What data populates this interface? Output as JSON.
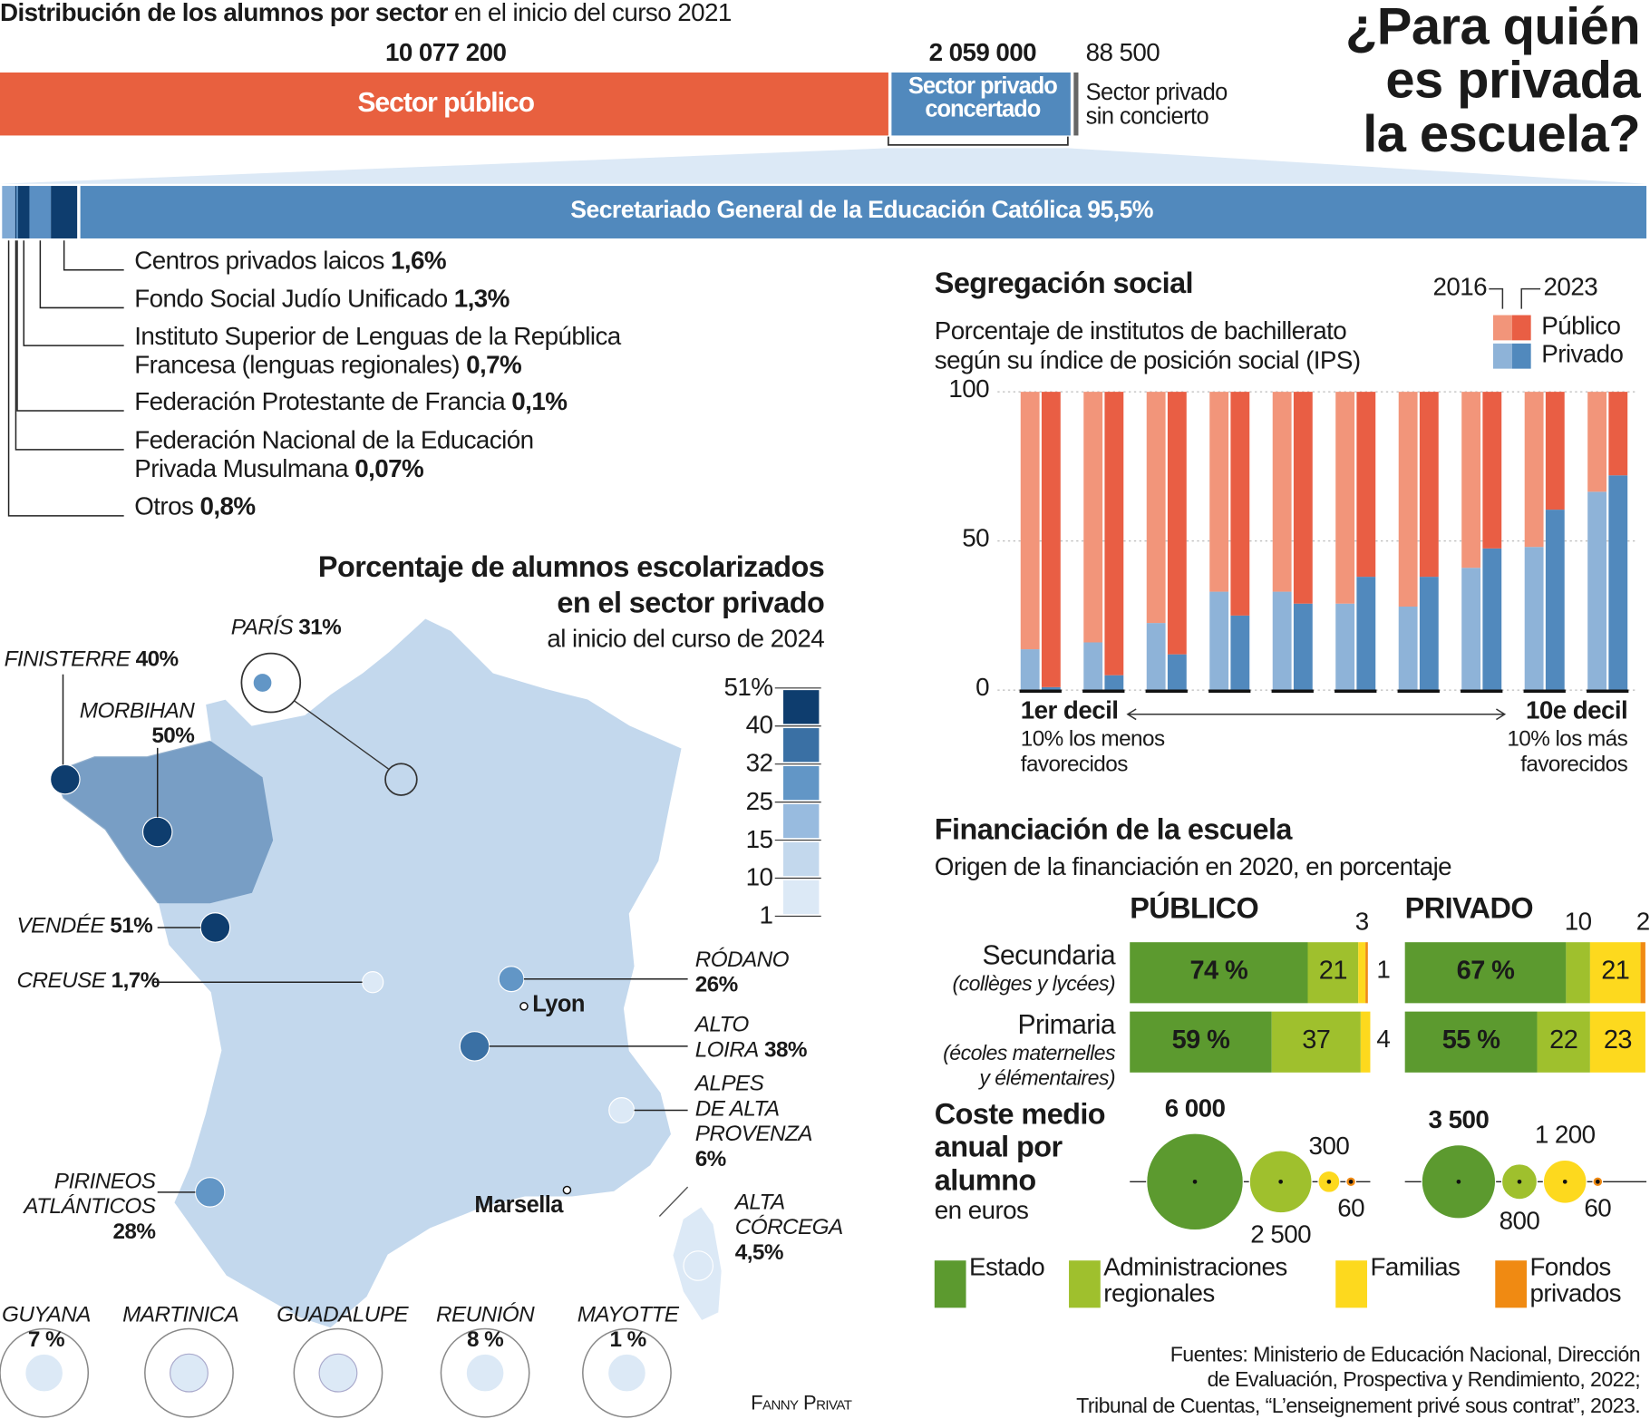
{
  "title": "¿Para quién\nes privada\nla escuela?",
  "credit": "Fanny Privat",
  "sources": "Fuentes: Ministerio de Educación Nacional, Dirección\nde Evaluación, Prospectiva y Rendimiento, 2022;\nTribunal de Cuentas, “L’enseignement privé sous contrat”, 2023.",
  "chart_data": [
    {
      "type": "stacked-bar",
      "title": "Distribución de los alumnos por sector",
      "subtitle": "en el inicio del curso 2021",
      "categories": [
        "Sector público",
        "Sector privado\nconcertado",
        "Sector privado\nsin concierto"
      ],
      "values": [
        10077200,
        2059000,
        88500
      ],
      "value_labels": [
        "10 077 200",
        "2 059 000",
        "88 500"
      ],
      "colors": [
        "#e8603f",
        "#5189bd",
        "#666666"
      ]
    },
    {
      "type": "stacked-bar",
      "categories": [
        "Otros",
        "Federación Nacional de la Educación\nPrivada Musulmana",
        "Federación Protestante de Francia",
        "Instituto Superior de Lenguas de la República\nFrancesa (lenguas regionales)",
        "Fondo Social Judío Unificado",
        "Centros privados laicos",
        "Secretariado General de la Educación Católica"
      ],
      "values": [
        0.8,
        0.07,
        0.1,
        0.7,
        1.3,
        1.6,
        95.5
      ],
      "value_labels": [
        "0,8%",
        "0,07%",
        "0,1%",
        "0,7%",
        "1,3%",
        "1,6%",
        "95,5%"
      ],
      "colors": [
        "#7fa9d4",
        "#0e3d6e",
        "#5189bd",
        "#0e3d6e",
        "#5a8fc3",
        "#0e3d6e",
        "#5189bd"
      ]
    },
    {
      "type": "grouped-bar",
      "title": "Segregación social",
      "subtitle": "Porcentaje de institutos de bachillerato\nsegún su índice de posición social (IPS)",
      "years": [
        "2016",
        "2023"
      ],
      "categories": [
        "1er decil",
        null,
        null,
        null,
        null,
        null,
        null,
        null,
        null,
        "10e decil"
      ],
      "category_notes": [
        "10% los menos\nfavorecidos",
        null,
        null,
        null,
        null,
        null,
        null,
        null,
        null,
        "10% los más\nfavorecidos"
      ],
      "series": [
        {
          "name": "Público",
          "colors": [
            "#f2957a",
            "#e95e44"
          ],
          "values": [
            [
              86.3,
              84,
              77.5,
              67,
              67,
              71,
              72,
              59,
              52,
              33.5
            ],
            [
              99,
              95,
              88,
              75,
              71,
              62,
              62,
              52.5,
              39.5,
              28
            ]
          ]
        },
        {
          "name": "Privado",
          "colors": [
            "#8eb3d8",
            "#5189bd"
          ],
          "values": [
            [
              13.7,
              16,
              22.5,
              33,
              33,
              29,
              28,
              41,
              48,
              66.5
            ],
            [
              1,
              5,
              12,
              25,
              29,
              38,
              38,
              47.5,
              60.5,
              72
            ]
          ]
        }
      ],
      "ylim": [
        0,
        100
      ],
      "yticks": [
        0,
        50,
        100
      ],
      "grid": true
    },
    {
      "type": "stacked-bar",
      "title": "Financiación de la escuela",
      "subtitle": "Origen de la financiación en 2020, en porcentaje",
      "panels": [
        "PÚBLICO",
        "PRIVADO"
      ],
      "categories": [
        "Secundaria",
        "Primaria"
      ],
      "category_notes": [
        "(collèges y lycées)",
        "(écoles maternelles\ny élémentaires)"
      ],
      "series": [
        {
          "name": "Estado",
          "color": "#5c9a2f",
          "values": [
            [
              74,
              59
            ],
            [
              67,
              55
            ]
          ],
          "value_labels": [
            [
              "74 %",
              "59 %"
            ],
            [
              "67 %",
              "55 %"
            ]
          ]
        },
        {
          "name": "Administraciones\nregionales",
          "color": "#9fc02d",
          "values": [
            [
              21,
              37
            ],
            [
              10,
              22
            ]
          ],
          "value_labels": [
            [
              "21",
              "37"
            ],
            [
              "10",
              "22"
            ]
          ]
        },
        {
          "name": "Familias",
          "color": "#fdd91e",
          "values": [
            [
              3,
              4
            ],
            [
              21,
              23
            ]
          ],
          "value_labels": [
            [
              "3",
              "4"
            ],
            [
              "21",
              "23"
            ]
          ]
        },
        {
          "name": "Fondos\nprivados",
          "color": "#f08a12",
          "values": [
            [
              1,
              null
            ],
            [
              2,
              null
            ]
          ],
          "value_labels": [
            [
              "1",
              null
            ],
            [
              "2",
              null
            ]
          ]
        }
      ],
      "cost": {
        "title": "Coste medio\nanual por\nalumno",
        "subtitle": "en euros",
        "values": [
          [
            6000,
            2500,
            300,
            60
          ],
          [
            3500,
            800,
            1200,
            60
          ]
        ],
        "value_labels": [
          [
            "6 000",
            "2 500",
            "300",
            "60"
          ],
          [
            "3 500",
            "800",
            "1 200",
            "60"
          ]
        ]
      }
    },
    {
      "type": "choropleth",
      "title": "Porcentaje de alumnos escolarizados\nen el sector privado",
      "subtitle": "al inicio del curso de 2024",
      "ticks": [
        {
          "value": 51,
          "label": "51%"
        },
        40,
        32,
        25,
        15,
        10,
        1
      ],
      "colors": [
        "#0e3d6e",
        "#3a70a4",
        "#6296c6",
        "#98bbdf",
        "#c3d8ed",
        "#dce9f6"
      ],
      "categories": [
        "FINISTERRE",
        "MORBIHAN",
        "PARÍS",
        "VENDÉE",
        "CREUSE",
        "RÓDANO",
        "ALTO\nLOIRA",
        "ALPES\nDE ALTA\nPROVENZA",
        "PIRINEOS\nATLÁNTICOS",
        "ALTA\nCÓRCEGA",
        "GUYANA",
        "MARTINICA",
        "GUADALUPE",
        "REUNIÓN",
        "MAYOTTE"
      ],
      "values": [
        40,
        50,
        31,
        51,
        1.7,
        26,
        38,
        6,
        28,
        4.5,
        7,
        null,
        null,
        8,
        1
      ],
      "value_labels": [
        "40%",
        "50%",
        "31%",
        "51%",
        "1,7%",
        "26%",
        "38%",
        "6%",
        "28%",
        "4,5%",
        "7 %",
        null,
        null,
        "8 %",
        "1 %"
      ],
      "cities": [
        "Lyon",
        "Marsella"
      ]
    }
  ]
}
